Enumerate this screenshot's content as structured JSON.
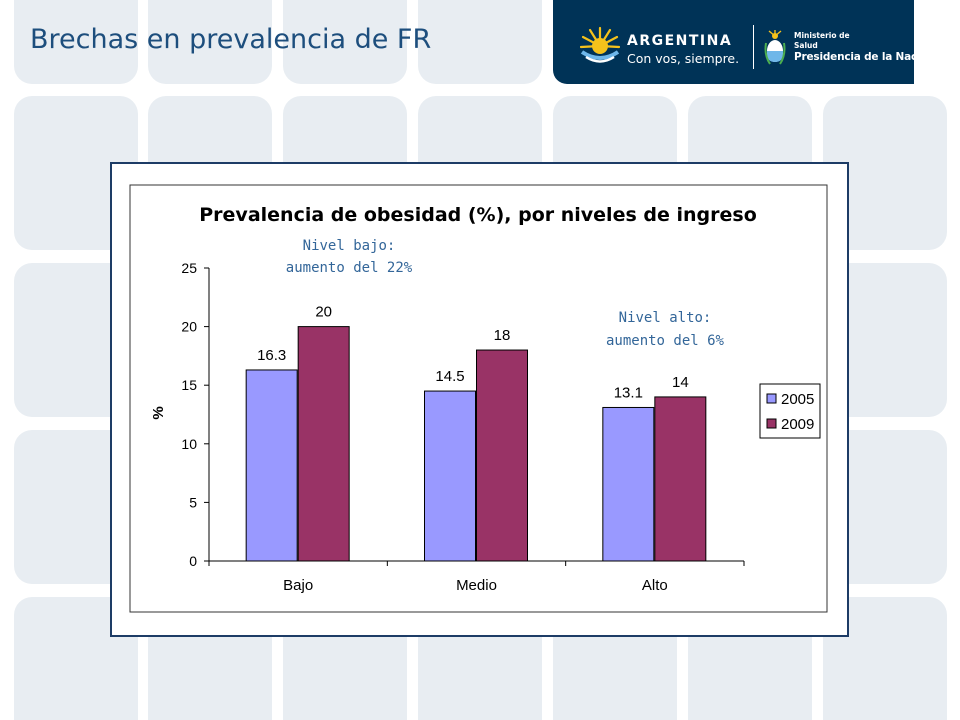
{
  "slide": {
    "title": "Brechas en prevalencia de FR"
  },
  "header": {
    "brand": "ARGENTINA",
    "slogan": "Con vos, siempre.",
    "ministry_line1": "Ministerio de",
    "ministry_line2": "Salud",
    "ministry_line3": "Presidencia de la Nación",
    "banner_color": "#003357"
  },
  "chart_data": {
    "type": "bar",
    "title": "Prevalencia de obesidad (%), por niveles de ingreso",
    "ylabel": "%",
    "xlabel": "",
    "categories": [
      "Bajo",
      "Medio",
      "Alto"
    ],
    "series": [
      {
        "name": "2005",
        "color": "#9999ff",
        "values": [
          16.3,
          14.5,
          13.1
        ]
      },
      {
        "name": "2009",
        "color": "#993366",
        "values": [
          20,
          18,
          14
        ]
      }
    ],
    "value_labels": [
      [
        "16.3",
        "14.5",
        "13.1"
      ],
      [
        "20",
        "18",
        "14"
      ]
    ],
    "ylim": [
      0,
      25
    ],
    "yticks": [
      0,
      5,
      10,
      15,
      20,
      25
    ],
    "grid": false,
    "legend_position": "right",
    "annotations": [
      {
        "line1": "Nivel bajo:",
        "line2": "aumento del 22%"
      },
      {
        "line1": "Nivel alto:",
        "line2": "aumento del 6%"
      }
    ],
    "annotation_color": "#336699"
  }
}
